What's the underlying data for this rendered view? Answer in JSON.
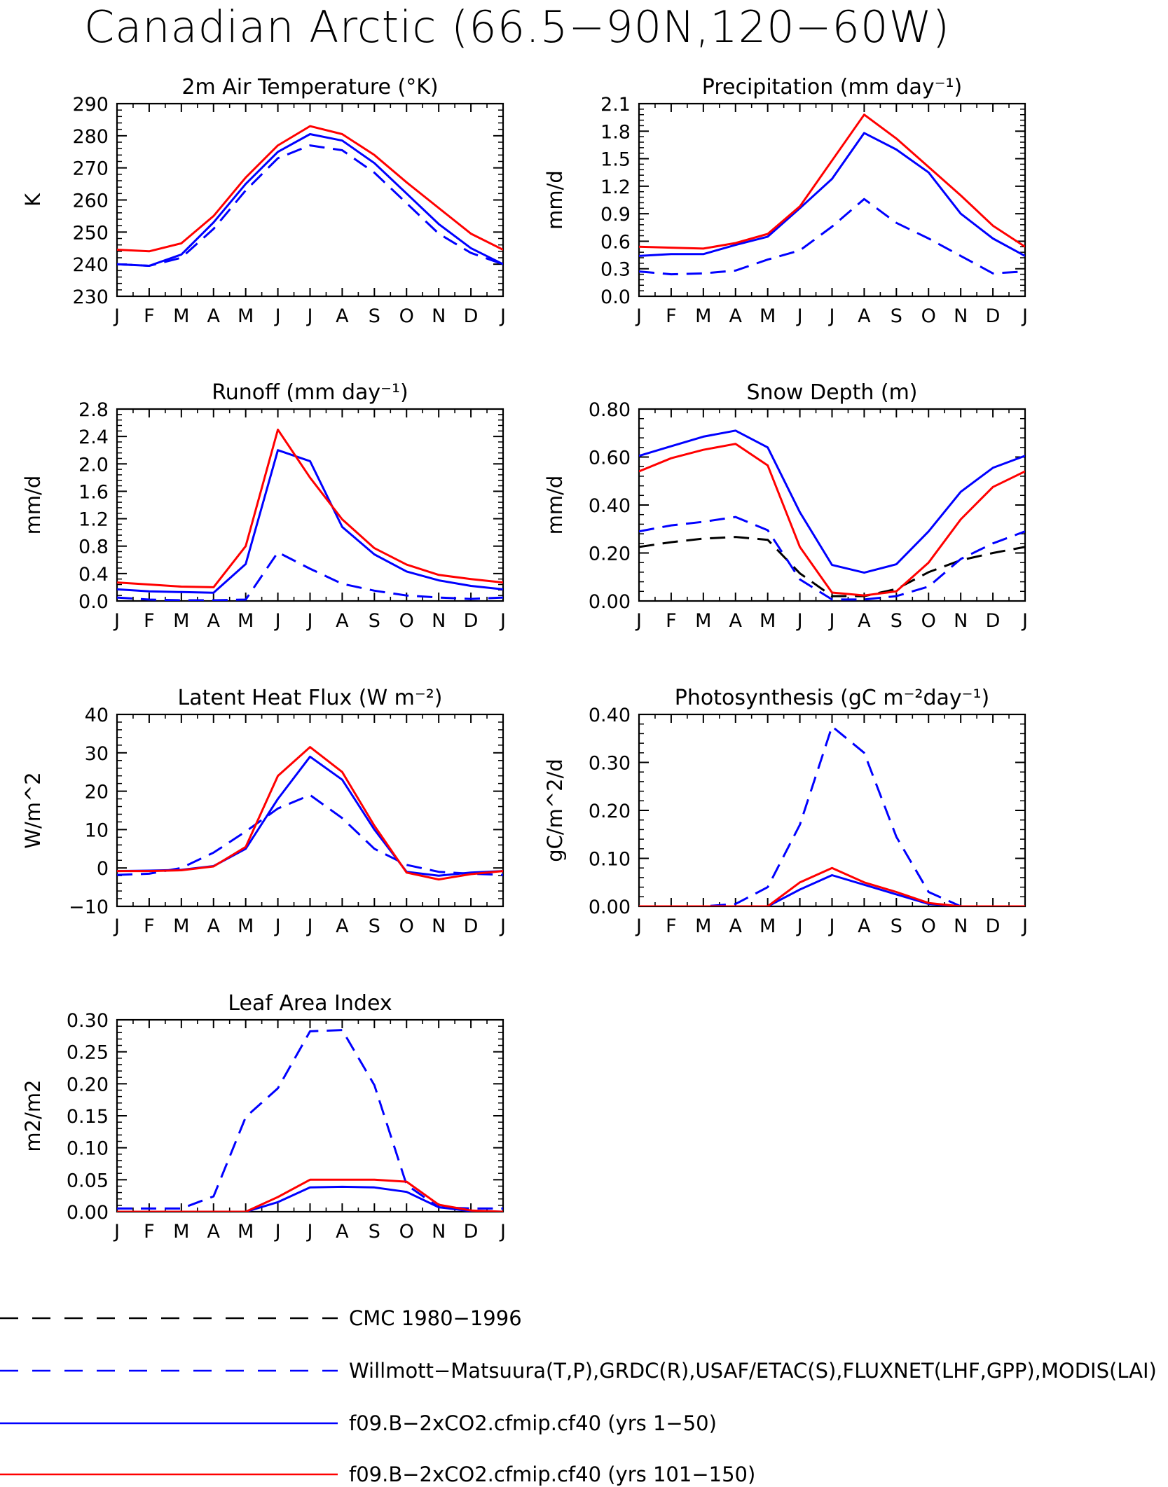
{
  "title": "Canadian Arctic (66.5−90N,120−60W)",
  "months": [
    "J",
    "F",
    "M",
    "A",
    "M",
    "J",
    "J",
    "A",
    "S",
    "O",
    "N",
    "D",
    "J"
  ],
  "legend": [
    {
      "label": "CMC 1980−1996",
      "color": "#000000",
      "dashed": true
    },
    {
      "label": "Willmott−Matsuura(T,P),GRDC(R),USAF/ETAC(S),FLUXNET(LHF,GPP),MODIS(LAI)",
      "color": "#0000ff",
      "dashed": true
    },
    {
      "label": "f09.B−2xCO2.cfmip.cf40 (yrs 1−50)",
      "color": "#0000ff",
      "dashed": false
    },
    {
      "label": "f09.B−2xCO2.cfmip.cf40 (yrs 101−150)",
      "color": "#ff0000",
      "dashed": false
    }
  ],
  "chart_data": [
    {
      "type": "line",
      "title": "2m Air Temperature (°K)",
      "ylabel": "K",
      "ylim": [
        230,
        290
      ],
      "yticks": [
        "230",
        "240",
        "250",
        "260",
        "270",
        "280",
        "290"
      ],
      "xticks": [
        "J",
        "F",
        "M",
        "A",
        "M",
        "J",
        "J",
        "A",
        "S",
        "O",
        "N",
        "D",
        "J"
      ],
      "series": [
        {
          "key": "obs",
          "color": "#0000ff",
          "dashed": true,
          "values": [
            240,
            239.5,
            242,
            251,
            263,
            273,
            277,
            275.5,
            268.5,
            259,
            249.5,
            243.5,
            240
          ]
        },
        {
          "key": "run1",
          "color": "#0000ff",
          "dashed": false,
          "values": [
            240,
            239.5,
            243,
            253,
            265,
            275,
            280.5,
            278.5,
            271.5,
            262,
            252.5,
            245,
            240
          ]
        },
        {
          "key": "run2",
          "color": "#ff0000",
          "dashed": false,
          "values": [
            244.5,
            244,
            246.5,
            255,
            267,
            277,
            283,
            280.5,
            274,
            265.5,
            257.5,
            249.5,
            244.5
          ]
        }
      ]
    },
    {
      "type": "line",
      "title": "Precipitation (mm day⁻¹)",
      "ylabel": "mm/d",
      "ylim": [
        0,
        2.1
      ],
      "yticks": [
        "0.0",
        "0.3",
        "0.6",
        "0.9",
        "1.2",
        "1.5",
        "1.8",
        "2.1"
      ],
      "xticks": [
        "J",
        "F",
        "M",
        "A",
        "M",
        "J",
        "J",
        "A",
        "S",
        "O",
        "N",
        "D",
        "J"
      ],
      "series": [
        {
          "key": "obs",
          "color": "#0000ff",
          "dashed": true,
          "values": [
            0.27,
            0.24,
            0.25,
            0.28,
            0.4,
            0.5,
            0.76,
            1.06,
            0.8,
            0.63,
            0.44,
            0.25,
            0.27
          ]
        },
        {
          "key": "run1",
          "color": "#0000ff",
          "dashed": false,
          "values": [
            0.44,
            0.46,
            0.46,
            0.56,
            0.65,
            0.96,
            1.28,
            1.78,
            1.6,
            1.35,
            0.9,
            0.63,
            0.44
          ]
        },
        {
          "key": "run2",
          "color": "#ff0000",
          "dashed": false,
          "values": [
            0.54,
            0.53,
            0.52,
            0.58,
            0.68,
            0.98,
            1.48,
            1.98,
            1.72,
            1.41,
            1.1,
            0.77,
            0.54
          ]
        }
      ]
    },
    {
      "type": "line",
      "title": "Runoff (mm day⁻¹)",
      "ylabel": "mm/d",
      "ylim": [
        0,
        2.8
      ],
      "yticks": [
        "0.0",
        "0.4",
        "0.8",
        "1.2",
        "1.6",
        "2.0",
        "2.4",
        "2.8"
      ],
      "xticks": [
        "J",
        "F",
        "M",
        "A",
        "M",
        "J",
        "J",
        "A",
        "S",
        "O",
        "N",
        "D",
        "J"
      ],
      "series": [
        {
          "key": "obs",
          "color": "#0000ff",
          "dashed": true,
          "values": [
            0.05,
            0.02,
            0.01,
            0.01,
            0.02,
            0.71,
            0.47,
            0.25,
            0.15,
            0.08,
            0.05,
            0.03,
            0.05
          ]
        },
        {
          "key": "run1",
          "color": "#0000ff",
          "dashed": false,
          "values": [
            0.17,
            0.14,
            0.13,
            0.12,
            0.54,
            2.2,
            2.04,
            1.08,
            0.68,
            0.43,
            0.3,
            0.22,
            0.17
          ]
        },
        {
          "key": "run2",
          "color": "#ff0000",
          "dashed": false,
          "values": [
            0.27,
            0.24,
            0.21,
            0.2,
            0.8,
            2.5,
            1.8,
            1.19,
            0.77,
            0.53,
            0.38,
            0.32,
            0.27
          ]
        }
      ]
    },
    {
      "type": "line",
      "title": "Snow Depth (m)",
      "ylabel": "mm/d",
      "ylim": [
        0,
        0.8
      ],
      "yticks": [
        "0.00",
        "0.20",
        "0.40",
        "0.60",
        "0.80"
      ],
      "xticks": [
        "J",
        "F",
        "M",
        "A",
        "M",
        "J",
        "J",
        "A",
        "S",
        "O",
        "N",
        "D",
        "J"
      ],
      "series": [
        {
          "key": "cmc",
          "color": "#000000",
          "dashed": true,
          "values": [
            0.225,
            0.245,
            0.26,
            0.267,
            0.255,
            0.115,
            0.02,
            0.02,
            0.05,
            0.12,
            0.17,
            0.2,
            0.225
          ]
        },
        {
          "key": "obs",
          "color": "#0000ff",
          "dashed": true,
          "values": [
            0.29,
            0.315,
            0.33,
            0.35,
            0.295,
            0.09,
            0.006,
            0.006,
            0.02,
            0.06,
            0.175,
            0.24,
            0.29
          ]
        },
        {
          "key": "run1",
          "color": "#0000ff",
          "dashed": false,
          "values": [
            0.605,
            0.645,
            0.685,
            0.71,
            0.64,
            0.37,
            0.15,
            0.118,
            0.153,
            0.29,
            0.455,
            0.555,
            0.605
          ]
        },
        {
          "key": "run2",
          "color": "#ff0000",
          "dashed": false,
          "values": [
            0.54,
            0.595,
            0.63,
            0.655,
            0.565,
            0.225,
            0.035,
            0.023,
            0.04,
            0.16,
            0.34,
            0.475,
            0.54
          ]
        }
      ]
    },
    {
      "type": "line",
      "title": "Latent Heat Flux (W m⁻²)",
      "ylabel": "W/m^2",
      "ylim": [
        -10,
        40
      ],
      "yticks": [
        "−10",
        "0",
        "10",
        "20",
        "30",
        "40"
      ],
      "xticks": [
        "J",
        "F",
        "M",
        "A",
        "M",
        "J",
        "J",
        "A",
        "S",
        "O",
        "N",
        "D",
        "J"
      ],
      "series": [
        {
          "key": "obs",
          "color": "#0000ff",
          "dashed": true,
          "values": [
            -1.8,
            -1.5,
            0,
            4,
            9.5,
            15.5,
            19,
            13,
            5,
            0.8,
            -1,
            -1.5,
            -1.8
          ]
        },
        {
          "key": "run1",
          "color": "#0000ff",
          "dashed": false,
          "values": [
            -0.8,
            -0.7,
            -0.5,
            0.5,
            5,
            18,
            29,
            23,
            10,
            -1,
            -2,
            -1.2,
            -0.8
          ]
        },
        {
          "key": "run2",
          "color": "#ff0000",
          "dashed": false,
          "values": [
            -0.8,
            -0.8,
            -0.6,
            0.4,
            5.5,
            24,
            31.5,
            25,
            11,
            -1.2,
            -3,
            -1.6,
            -0.8
          ]
        }
      ]
    },
    {
      "type": "line",
      "title": "Photosynthesis (gC m⁻²day⁻¹)",
      "ylabel": "gC/m^2/d",
      "ylim": [
        0,
        0.4
      ],
      "yticks": [
        "0.00",
        "0.10",
        "0.20",
        "0.30",
        "0.40"
      ],
      "xticks": [
        "J",
        "F",
        "M",
        "A",
        "M",
        "J",
        "J",
        "A",
        "S",
        "O",
        "N",
        "D",
        "J"
      ],
      "series": [
        {
          "key": "obs",
          "color": "#0000ff",
          "dashed": true,
          "values": [
            0,
            0,
            0,
            0.005,
            0.04,
            0.17,
            0.375,
            0.32,
            0.145,
            0.03,
            0,
            0,
            0
          ]
        },
        {
          "key": "run1",
          "color": "#0000ff",
          "dashed": false,
          "values": [
            0,
            0,
            0,
            0,
            0,
            0.035,
            0.065,
            0.045,
            0.025,
            0.005,
            0,
            0,
            0
          ]
        },
        {
          "key": "run2",
          "color": "#ff0000",
          "dashed": false,
          "values": [
            0,
            0,
            0,
            0,
            0,
            0.05,
            0.08,
            0.05,
            0.03,
            0.007,
            0,
            0,
            0
          ]
        }
      ]
    },
    {
      "type": "line",
      "title": "Leaf Area Index",
      "ylabel": "m2/m2",
      "ylim": [
        0,
        0.3
      ],
      "yticks": [
        "0.00",
        "0.05",
        "0.10",
        "0.15",
        "0.20",
        "0.25",
        "0.30"
      ],
      "xticks": [
        "J",
        "F",
        "M",
        "A",
        "M",
        "J",
        "J",
        "A",
        "S",
        "O",
        "N",
        "D",
        "J"
      ],
      "series": [
        {
          "key": "obs",
          "color": "#0000ff",
          "dashed": true,
          "values": [
            0.005,
            0.005,
            0.005,
            0.024,
            0.148,
            0.193,
            0.282,
            0.284,
            0.198,
            0.042,
            0.007,
            0.005,
            0.005
          ]
        },
        {
          "key": "run1",
          "color": "#0000ff",
          "dashed": false,
          "values": [
            0,
            0,
            0,
            0,
            0,
            0.015,
            0.038,
            0.039,
            0.038,
            0.031,
            0.007,
            0.001,
            0
          ]
        },
        {
          "key": "run2",
          "color": "#ff0000",
          "dashed": false,
          "values": [
            0,
            0,
            0,
            0,
            0,
            0.023,
            0.05,
            0.05,
            0.05,
            0.047,
            0.011,
            0.002,
            0
          ]
        }
      ]
    }
  ]
}
